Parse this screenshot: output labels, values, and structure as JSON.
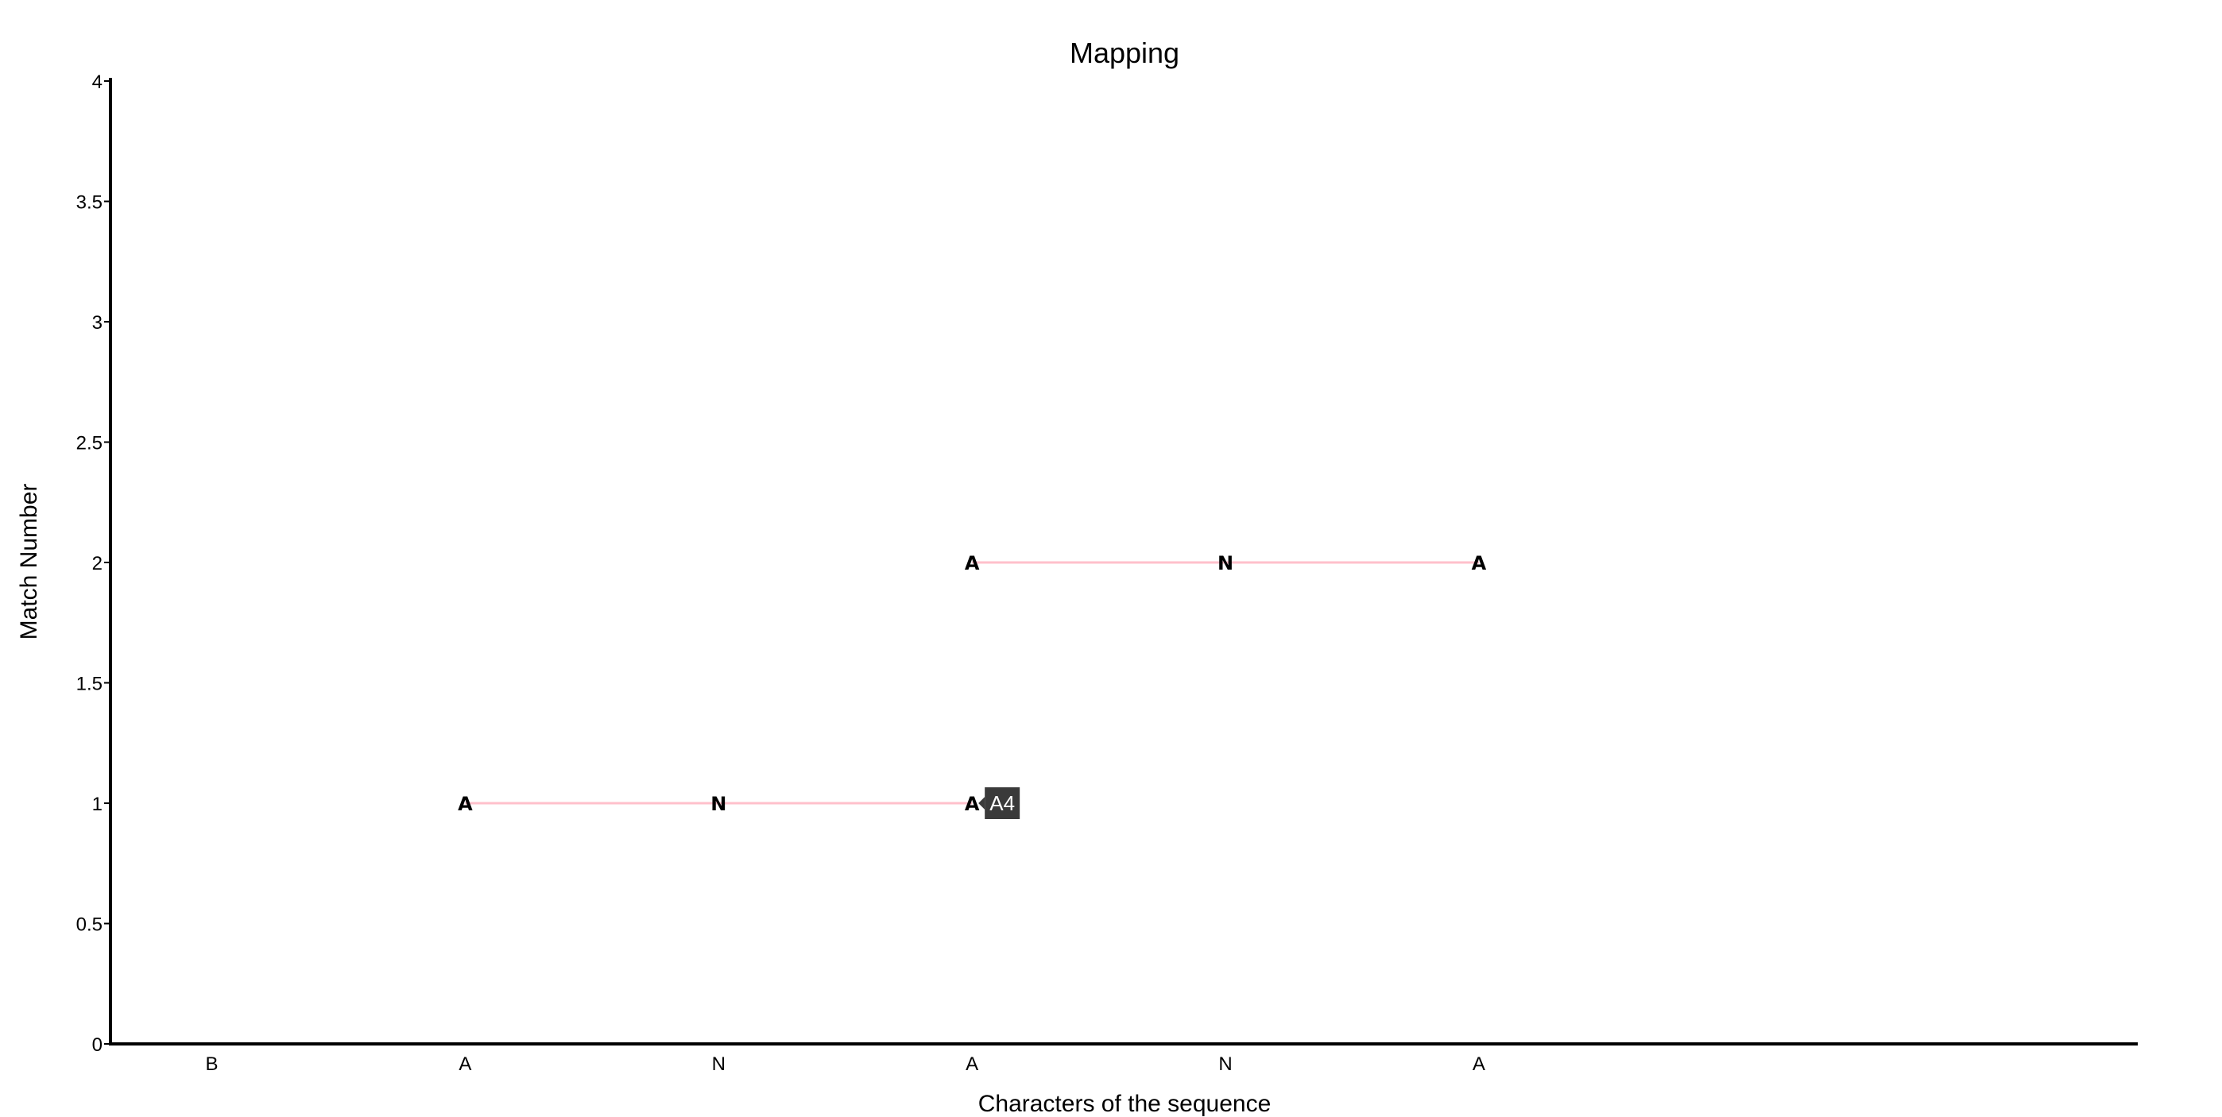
{
  "chart_data": {
    "type": "line",
    "title": "Mapping",
    "xlabel": "Characters of the sequence",
    "ylabel": "Match Number",
    "categories": [
      "B",
      "A",
      "N",
      "A",
      "N",
      "A"
    ],
    "ylim": [
      0,
      4
    ],
    "yticks": [
      "0",
      "0.5",
      "1",
      "1.5",
      "2",
      "2.5",
      "3",
      "3.5",
      "4"
    ],
    "grid": false,
    "series": [
      {
        "x": [
          1,
          2,
          3
        ],
        "y": [
          1,
          1,
          1
        ],
        "text": [
          "A",
          "N",
          "A"
        ],
        "line_color": "#ffc0cb"
      },
      {
        "x": [
          3,
          4,
          5
        ],
        "y": [
          2,
          2,
          2
        ],
        "text": [
          "A",
          "N",
          "A"
        ],
        "line_color": "#ffc0cb"
      }
    ],
    "hover": {
      "text": "A4",
      "x": 3,
      "y": 1,
      "background": "#3a3a3a"
    }
  }
}
